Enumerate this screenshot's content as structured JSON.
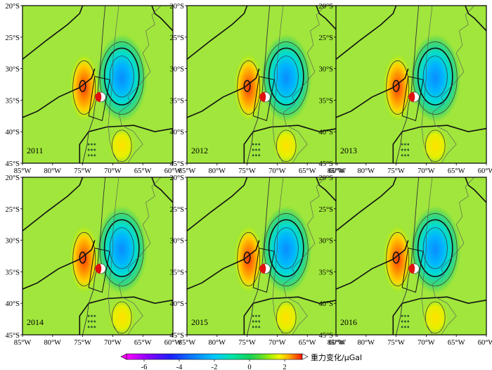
{
  "panels": [
    {
      "year": "2011"
    },
    {
      "year": "2012"
    },
    {
      "year": "2013"
    },
    {
      "year": "2014"
    },
    {
      "year": "2015"
    },
    {
      "year": "2016"
    }
  ],
  "lat_labels": [
    "20°S",
    "25°S",
    "30°S",
    "35°S",
    "40°S",
    "45°S"
  ],
  "lon_labels": [
    "85°W",
    "80°W",
    "75°W",
    "70°W",
    "65°W",
    "60°W"
  ],
  "colorbar": {
    "title": "重力变化/μGal",
    "ticks": [
      "-6",
      "-4",
      "-2",
      "0",
      "2"
    ],
    "colors": [
      "#ff00ff",
      "#8c00ff",
      "#1e1eff",
      "#0a78ff",
      "#00c8ff",
      "#00e6aa",
      "#14d25a",
      "#50dc32",
      "#aaf000",
      "#f5f500",
      "#ffb400",
      "#ff6400",
      "#ff1400"
    ]
  }
}
